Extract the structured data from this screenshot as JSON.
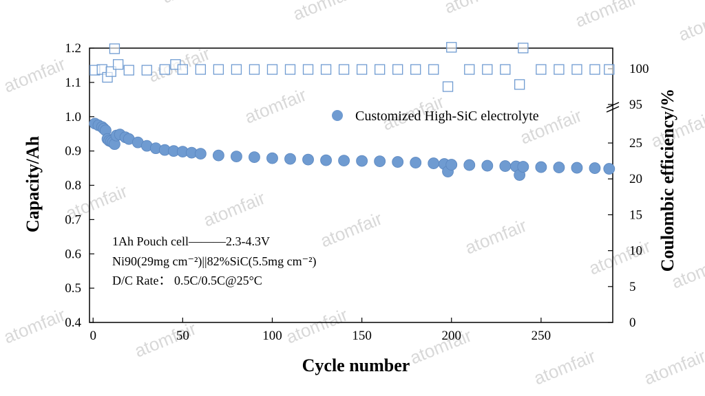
{
  "chart_data": {
    "type": "scatter",
    "xlabel": "Cycle number",
    "ylabel_left": "Capacity/Ah",
    "ylabel_right": "Coulombic efficiency/%",
    "xlim": [
      -2,
      290
    ],
    "x_ticks": [
      0,
      50,
      100,
      150,
      200,
      250
    ],
    "ylim_left": [
      0.4,
      1.2
    ],
    "y_ticks_left": [
      0.4,
      0.5,
      0.6,
      0.7,
      0.8,
      0.9,
      1.0,
      1.1,
      1.2
    ],
    "y_tick_labels_left": [
      "0.4",
      "0.5",
      "0.6",
      "0.7",
      "0.8",
      "0.9",
      "1.0",
      "1.1",
      "1.2"
    ],
    "y_ticks_right_lower": [
      0,
      5,
      10,
      15,
      20,
      25
    ],
    "y_ticks_right_upper": [
      95,
      100
    ],
    "right_axis_break": "between 25 and 95",
    "legend": {
      "label": "Customized High-SiC electrolyte",
      "position": "top-right"
    },
    "annotations": [
      "1Ah Pouch cell———2.3-4.3V",
      "Ni90(29mg cm⁻²)||82%SiC(5.5mg cm⁻²)",
      "D/C Rate： 0.5C/0.5C@25°C"
    ],
    "series": [
      {
        "name": "Customized High-SiC electrolyte",
        "axis": "left",
        "marker": "filled-circle",
        "color": "#6f9bd1",
        "x": [
          1,
          3,
          5,
          6,
          7,
          8,
          9,
          10,
          11,
          12,
          13,
          15,
          18,
          20,
          25,
          30,
          35,
          40,
          45,
          50,
          55,
          60,
          70,
          80,
          90,
          100,
          110,
          120,
          130,
          140,
          150,
          160,
          170,
          180,
          190,
          196,
          198,
          200,
          210,
          220,
          230,
          236,
          238,
          240,
          250,
          260,
          270,
          280,
          288
        ],
        "y": [
          0.98,
          0.975,
          0.97,
          0.965,
          0.96,
          0.935,
          0.93,
          0.928,
          0.925,
          0.92,
          0.945,
          0.948,
          0.94,
          0.935,
          0.925,
          0.915,
          0.908,
          0.903,
          0.9,
          0.898,
          0.895,
          0.892,
          0.887,
          0.884,
          0.882,
          0.879,
          0.877,
          0.875,
          0.873,
          0.872,
          0.871,
          0.87,
          0.868,
          0.866,
          0.864,
          0.862,
          0.84,
          0.86,
          0.859,
          0.857,
          0.856,
          0.855,
          0.83,
          0.854,
          0.853,
          0.852,
          0.851,
          0.85,
          0.848
        ]
      },
      {
        "name": "",
        "axis": "right",
        "marker": "open-square",
        "color": "#6f9bd1",
        "x": [
          1,
          5,
          8,
          10,
          12,
          14,
          20,
          30,
          40,
          46,
          50,
          60,
          70,
          80,
          90,
          100,
          110,
          120,
          130,
          140,
          150,
          160,
          170,
          180,
          190,
          198,
          200,
          210,
          220,
          230,
          238,
          240,
          250,
          260,
          270,
          280,
          288
        ],
        "y": [
          99.8,
          99.9,
          98.8,
          99.6,
          102.8,
          100.6,
          99.8,
          99.8,
          99.9,
          100.6,
          99.9,
          99.9,
          99.9,
          99.9,
          99.9,
          99.9,
          99.9,
          99.9,
          99.9,
          99.9,
          99.9,
          99.9,
          99.9,
          99.9,
          99.9,
          97.5,
          103.0,
          99.9,
          99.9,
          99.9,
          97.8,
          102.9,
          99.9,
          99.9,
          99.9,
          99.9,
          99.9
        ]
      }
    ],
    "watermark_text": "atomfair"
  }
}
